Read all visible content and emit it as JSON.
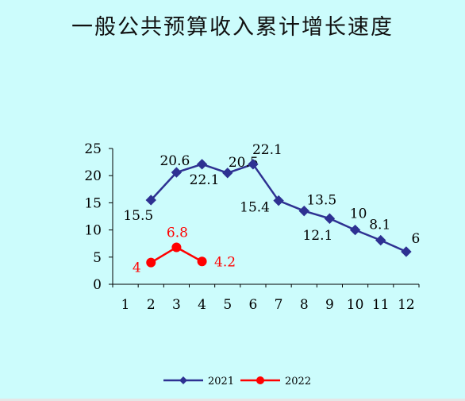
{
  "chart_data": {
    "type": "line",
    "title": "一般公共预算收入累计增长速度",
    "x": [
      1,
      2,
      3,
      4,
      5,
      6,
      7,
      8,
      9,
      10,
      11,
      12
    ],
    "ylim": [
      0,
      25
    ],
    "yticks": [
      0,
      5,
      10,
      15,
      20,
      25
    ],
    "series": [
      {
        "name": "2021",
        "color": "#2e3192",
        "marker": "diamond",
        "points": [
          {
            "x": 2,
            "y": 15.5,
            "label": "15.5"
          },
          {
            "x": 3,
            "y": 20.6,
            "label": "20.6"
          },
          {
            "x": 4,
            "y": 22.1,
            "label": "22.1"
          },
          {
            "x": 5,
            "y": 20.5,
            "label": "20.5"
          },
          {
            "x": 6,
            "y": 22.1,
            "label": "22.1"
          },
          {
            "x": 7,
            "y": 15.4,
            "label": "15.4"
          },
          {
            "x": 8,
            "y": 13.5,
            "label": "13.5"
          },
          {
            "x": 9,
            "y": 12.1,
            "label": "12.1"
          },
          {
            "x": 10,
            "y": 10,
            "label": "10"
          },
          {
            "x": 11,
            "y": 8.1,
            "label": "8.1"
          },
          {
            "x": 12,
            "y": 6,
            "label": "6"
          }
        ]
      },
      {
        "name": "2022",
        "color": "#ff0000",
        "marker": "circle",
        "points": [
          {
            "x": 2,
            "y": 4,
            "label": "4"
          },
          {
            "x": 3,
            "y": 6.8,
            "label": "6.8"
          },
          {
            "x": 4,
            "y": 4.2,
            "label": "4.2"
          }
        ]
      }
    ],
    "legend": "bottom-center"
  }
}
